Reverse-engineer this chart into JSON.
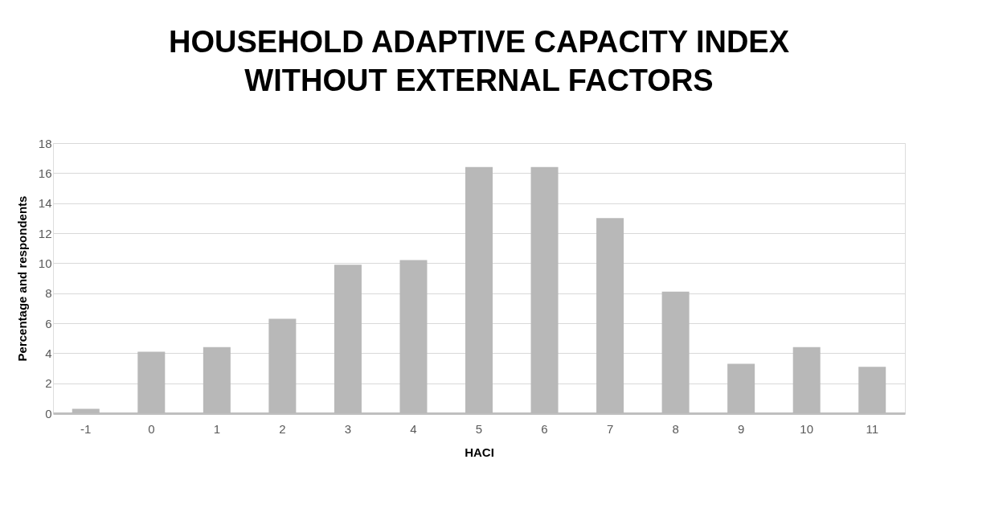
{
  "chart_data": {
    "type": "bar",
    "title": "HOUSEHOLD ADAPTIVE CAPACITY INDEX\nWITHOUT EXTERNAL FACTORS",
    "xlabel": "HACI",
    "ylabel": "Percentage and respondents",
    "categories": [
      "-1",
      "0",
      "1",
      "2",
      "3",
      "4",
      "5",
      "6",
      "7",
      "8",
      "9",
      "10",
      "11"
    ],
    "values": [
      0.3,
      4.1,
      4.4,
      6.3,
      9.9,
      10.2,
      16.4,
      16.4,
      13.0,
      8.1,
      3.3,
      4.4,
      3.1
    ],
    "color": "#b8b8b8",
    "ylim": [
      0,
      18
    ],
    "yticks": [
      0,
      2,
      4,
      6,
      8,
      10,
      12,
      14,
      16,
      18
    ],
    "grid": "y"
  }
}
